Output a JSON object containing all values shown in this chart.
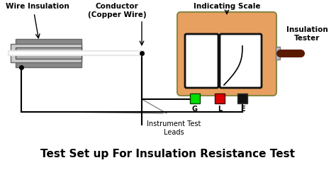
{
  "title": "Test Set up For Insulation Resistance Test",
  "title_fontsize": 11,
  "bg_color": "#ffffff",
  "wire_insulation_label": "Wire Insulation",
  "conductor_label": "Conductor\n(Copper Wire)",
  "indicating_scale_label": "Indicating Scale",
  "insulation_tester_label": "Insulation\nTester",
  "instrument_test_leads_label": "Instrument Test\nLeads",
  "g_label": "G",
  "l_label": "L",
  "e_label": "E",
  "green_color": "#00dd00",
  "red_color": "#dd0000",
  "black_color": "#111111",
  "orange_color": "#e8a060",
  "dark_brown": "#5a1a00",
  "gray1": "#aaaaaa",
  "gray2": "#cccccc",
  "gray3": "#888888"
}
